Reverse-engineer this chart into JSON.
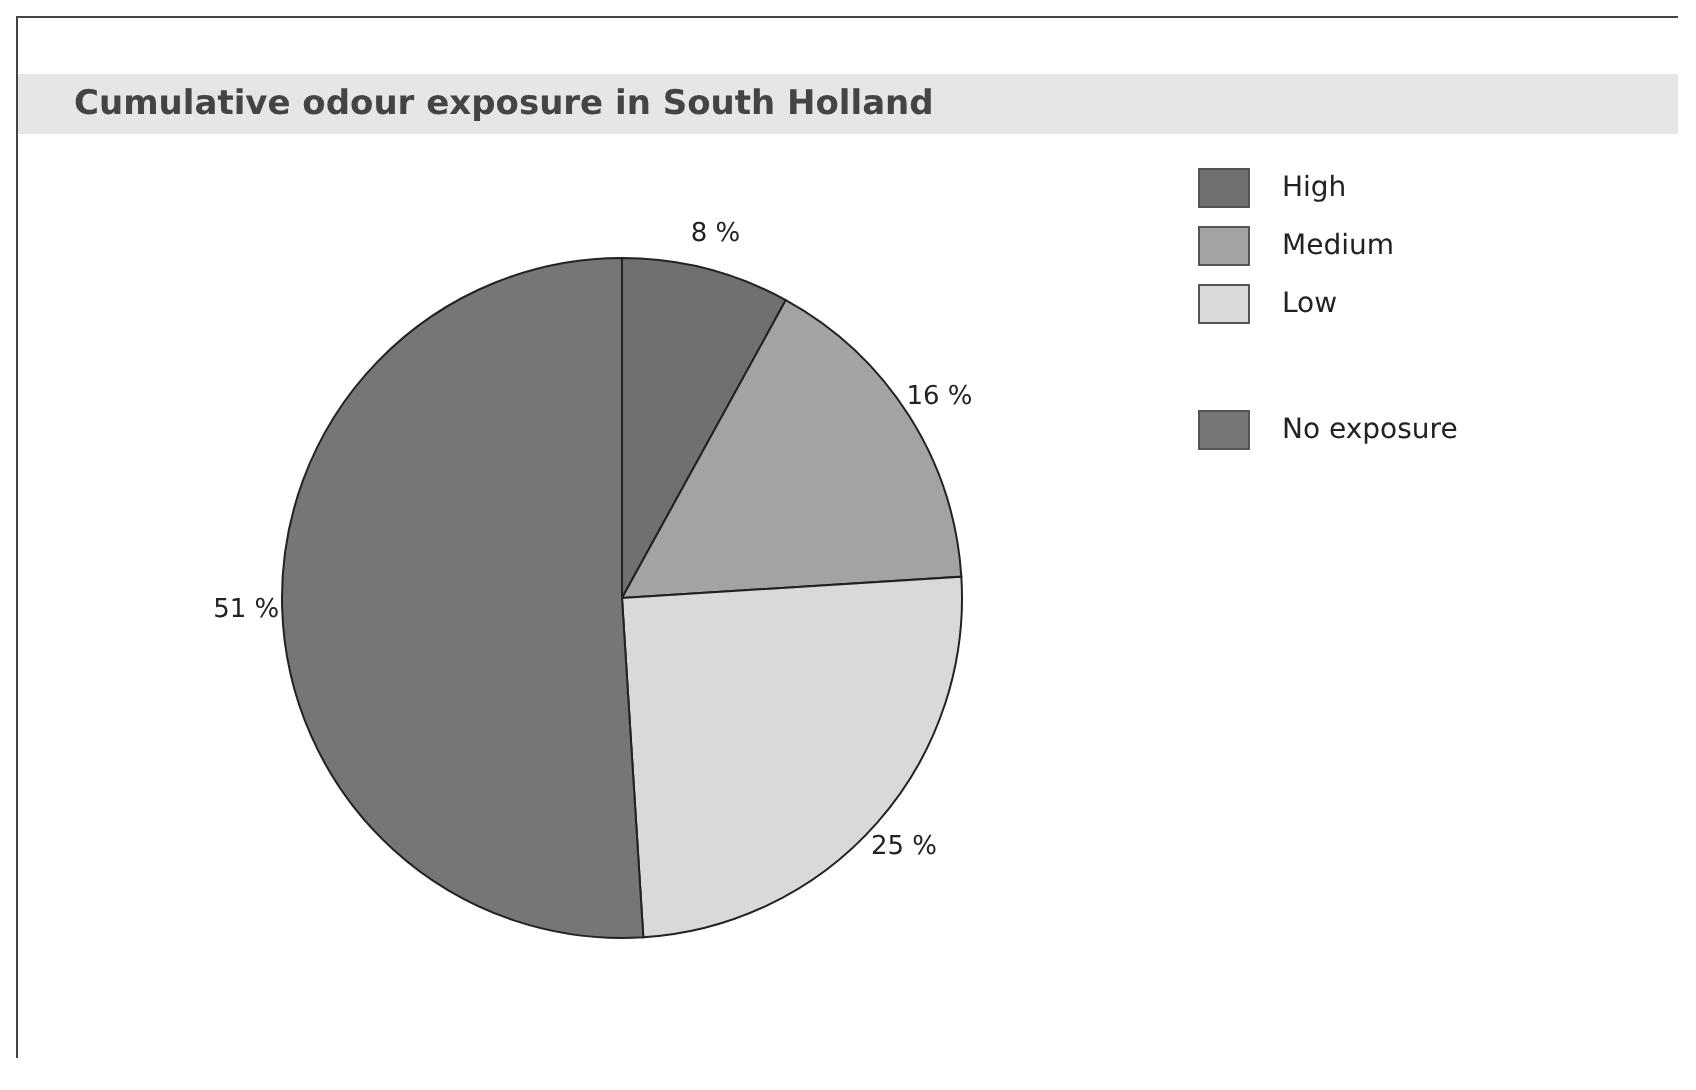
{
  "chart_data": {
    "type": "pie",
    "title": "Cumulative odour exposure in South Holland",
    "categories": [
      "High",
      "Medium",
      "Low",
      "No exposure"
    ],
    "values": [
      8,
      16,
      25,
      51
    ],
    "value_labels": [
      "8 %",
      "16 %",
      "25 %",
      "51 %"
    ],
    "colors": [
      "#707070",
      "#a3a3a3",
      "#d9d9d9",
      "#767676"
    ],
    "legend": "top right"
  }
}
